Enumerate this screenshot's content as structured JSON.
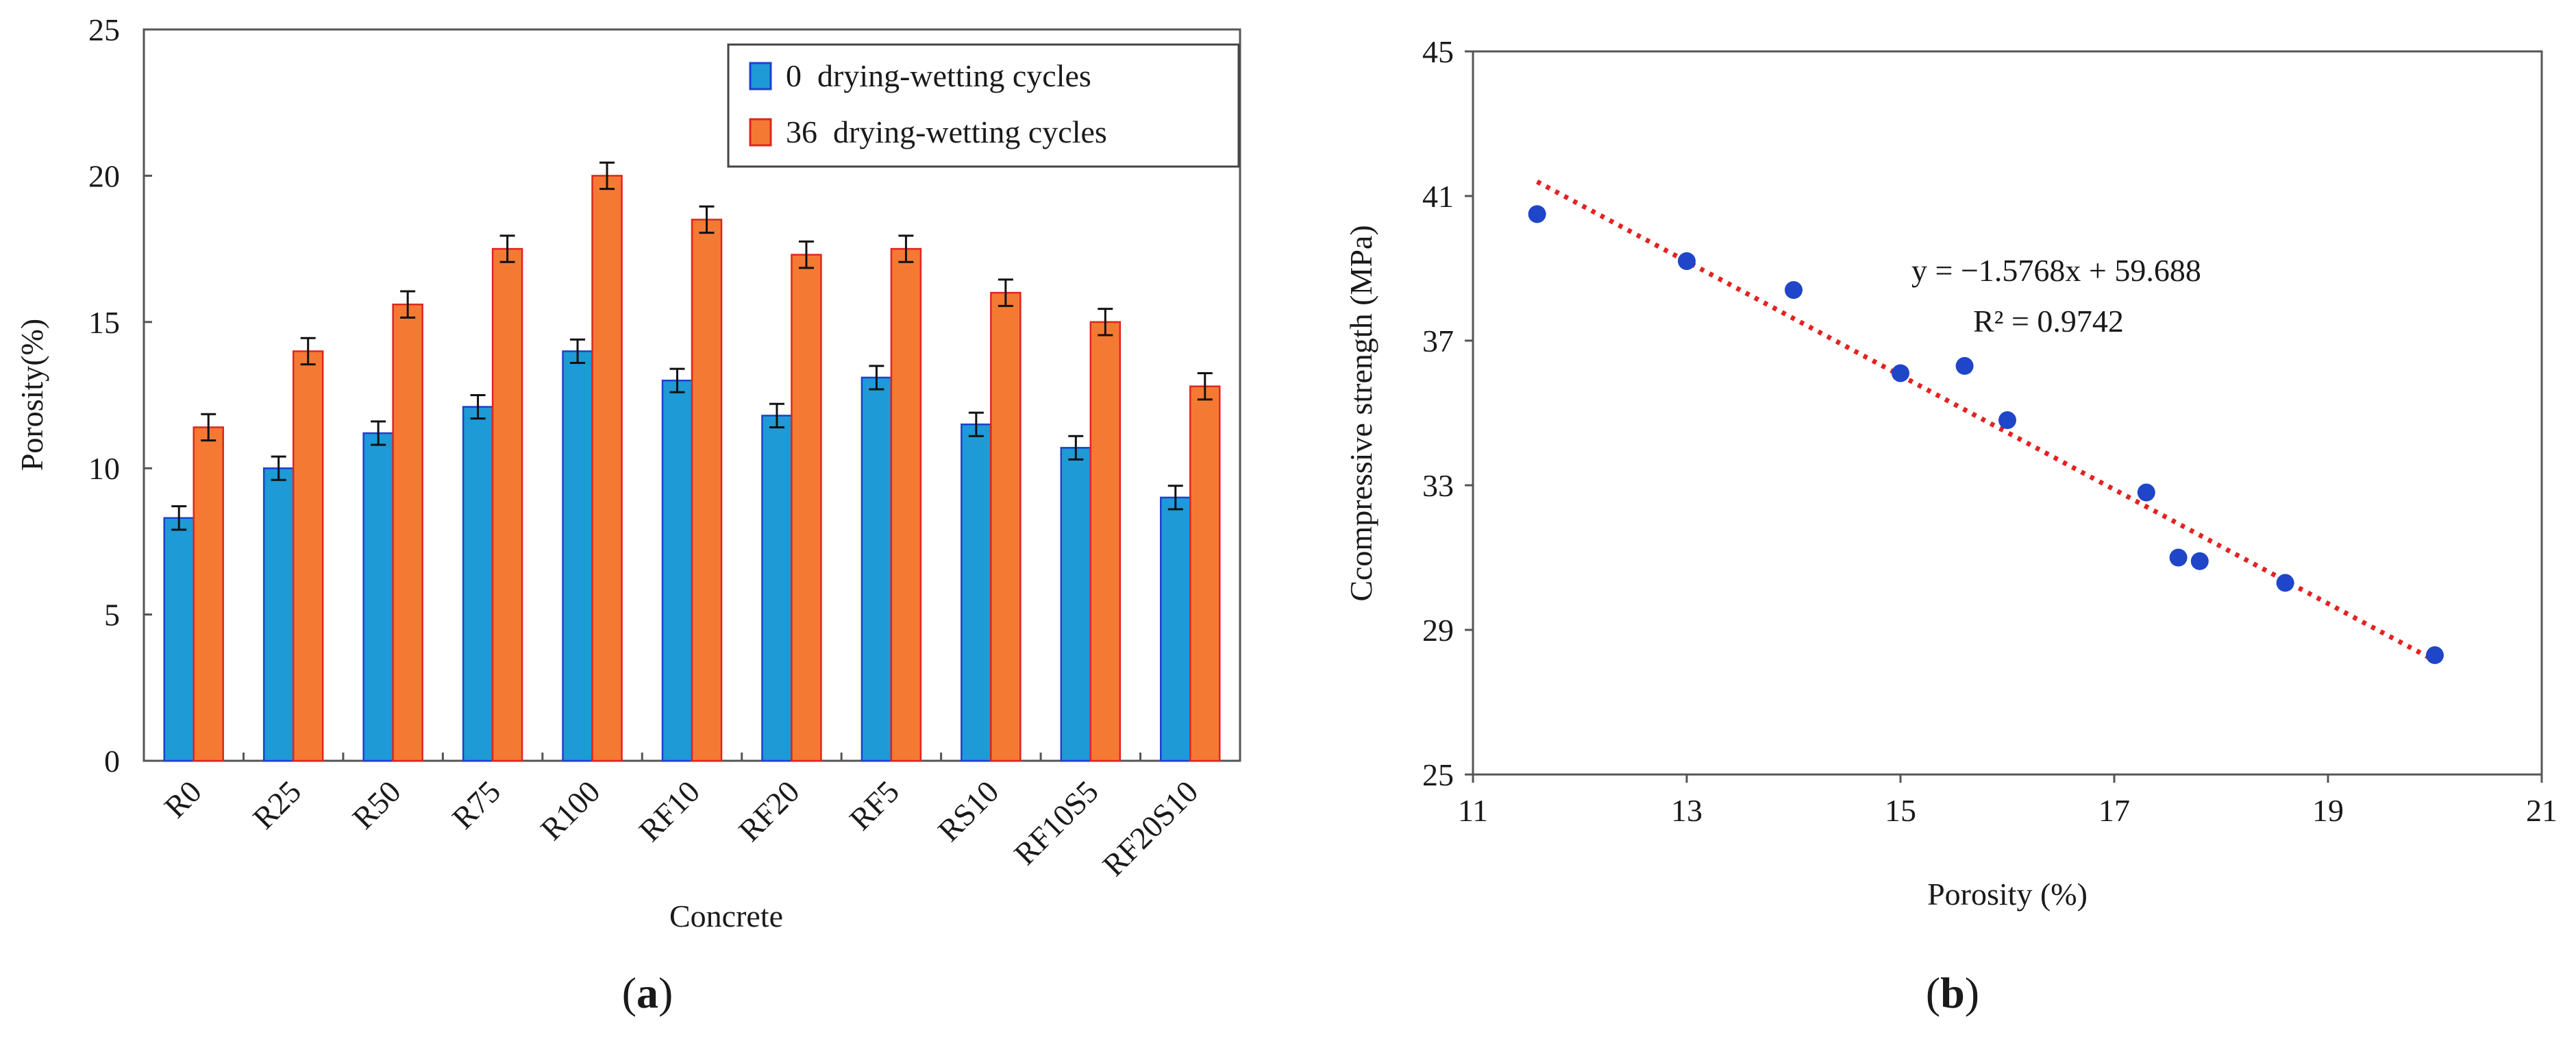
{
  "chart_data": [
    {
      "panel_label": "a",
      "type": "bar",
      "title": "",
      "xlabel": "Concrete",
      "ylabel": "Porosity(%)",
      "ylim": [
        0,
        25
      ],
      "yticks": [
        0,
        5,
        10,
        15,
        20,
        25
      ],
      "grid": false,
      "legend_position": "top-right",
      "categories": [
        "R0",
        "R25",
        "R50",
        "R75",
        "R100",
        "RF10",
        "RF20",
        "RF5",
        "RS10",
        "RF10S5",
        "RF20S10"
      ],
      "series": [
        {
          "name": "0  drying-wetting cycles",
          "color": "#1e9ad6",
          "edge_color": "#1f3fcf",
          "values": [
            8.3,
            10.0,
            11.2,
            12.1,
            14.0,
            13.0,
            11.8,
            13.1,
            11.5,
            10.7,
            9.0
          ],
          "errors": [
            0.4,
            0.4,
            0.4,
            0.4,
            0.4,
            0.4,
            0.4,
            0.4,
            0.4,
            0.4,
            0.4
          ]
        },
        {
          "name": "36  drying-wetting cycles",
          "color": "#f47a33",
          "edge_color": "#e0251f",
          "values": [
            11.4,
            14.0,
            15.6,
            17.5,
            20.0,
            18.5,
            17.3,
            17.5,
            16.0,
            15.0,
            12.8
          ],
          "errors": [
            0.45,
            0.45,
            0.45,
            0.45,
            0.45,
            0.45,
            0.45,
            0.45,
            0.45,
            0.45,
            0.45
          ]
        }
      ]
    },
    {
      "panel_label": "b",
      "type": "scatter",
      "title": "",
      "xlabel": "Porosity (%)",
      "ylabel": "Ccompressive strength (MPa)",
      "xlim": [
        11,
        21
      ],
      "ylim": [
        25,
        45
      ],
      "xticks": [
        11,
        13,
        15,
        17,
        19,
        21
      ],
      "yticks": [
        25,
        29,
        33,
        37,
        41,
        45
      ],
      "grid": false,
      "point_color": "#1f45c9",
      "points": [
        {
          "x": 11.6,
          "y": 40.5
        },
        {
          "x": 13.0,
          "y": 39.2
        },
        {
          "x": 14.0,
          "y": 38.4
        },
        {
          "x": 15.0,
          "y": 36.1
        },
        {
          "x": 15.6,
          "y": 36.3
        },
        {
          "x": 16.0,
          "y": 34.8
        },
        {
          "x": 17.3,
          "y": 32.8
        },
        {
          "x": 17.6,
          "y": 31.0
        },
        {
          "x": 17.8,
          "y": 30.9
        },
        {
          "x": 18.6,
          "y": 30.3
        },
        {
          "x": 20.0,
          "y": 28.3
        }
      ],
      "trendline": {
        "slope": -1.5768,
        "intercept": 59.688,
        "x_range": [
          11.6,
          20.0
        ],
        "color": "#e32222",
        "equation_text": "y = −1.5768x + 59.688",
        "r2_text": "R² = 0.9742"
      }
    }
  ]
}
